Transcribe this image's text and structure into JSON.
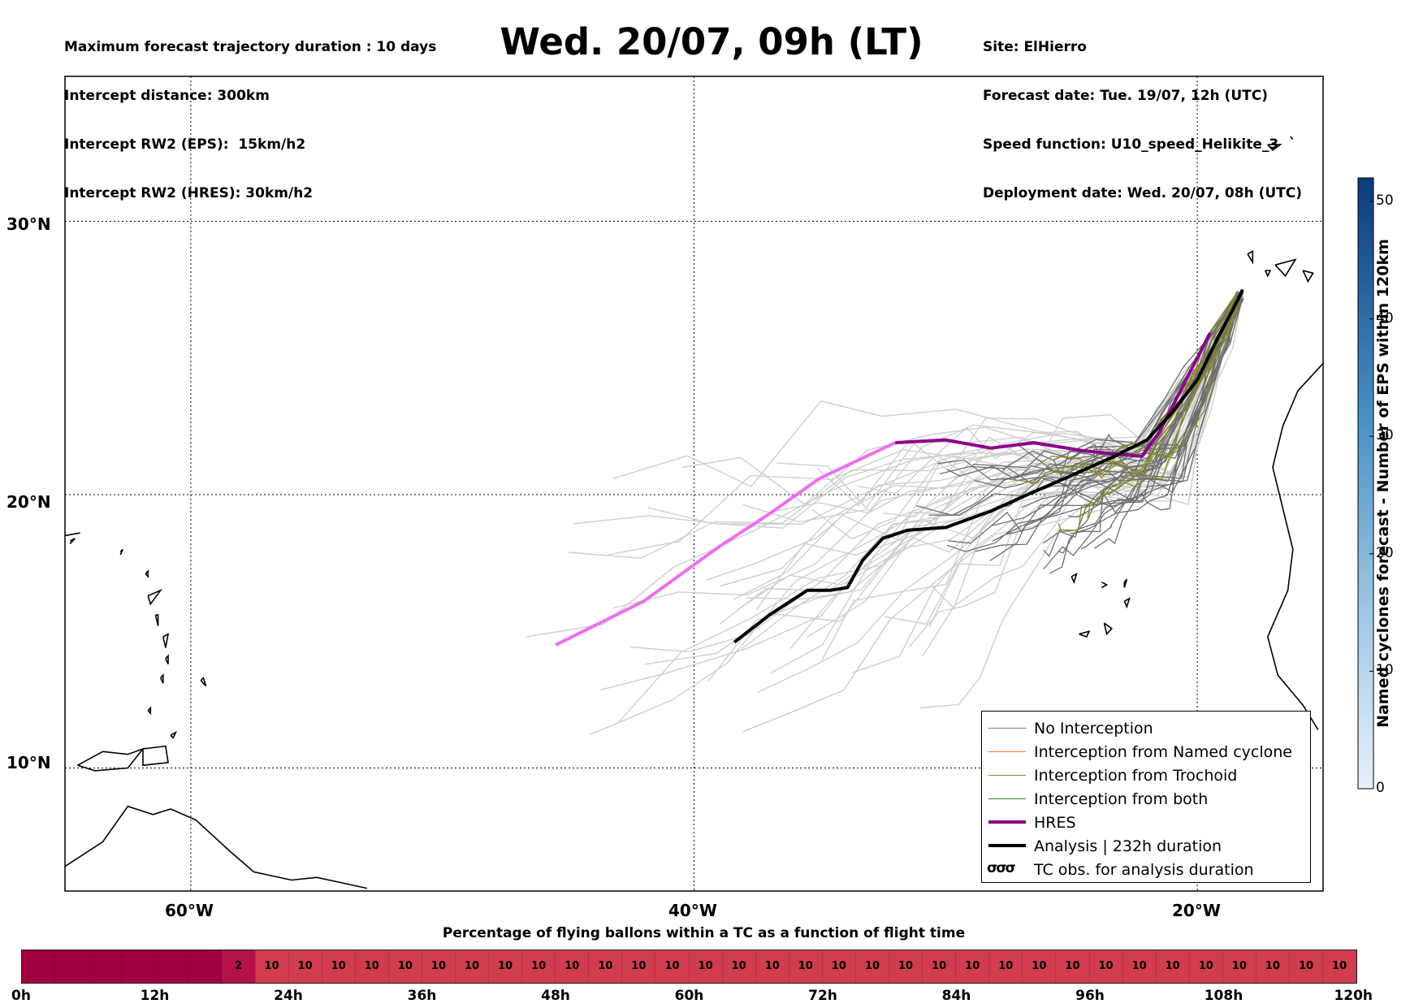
{
  "header_left": [
    "Maximum forecast trajectory duration : 10 days",
    "Intercept distance: 300km",
    "Intercept RW2 (EPS):  15km/h2",
    "Intercept RW2 (HRES): 30km/h2"
  ],
  "title": "Wed. 20/07, 09h (LT)",
  "header_right": [
    "Site: ElHierro",
    "Forecast date: Tue. 19/07, 12h (UTC)",
    "Speed function: U10_speed_Helikite_3",
    "Deployment date: Wed. 20/07, 08h (UTC)"
  ],
  "map": {
    "lat_labels": [
      "30°N",
      "20°N",
      "10°N"
    ],
    "lon_labels": [
      "60°W",
      "40°W",
      "20°W"
    ],
    "lat_range": [
      5.5,
      35.3
    ],
    "lon_range": [
      -65,
      -15
    ]
  },
  "legend": [
    {
      "label": "No Interception",
      "color": "#808080",
      "width": 1.2
    },
    {
      "label": "Interception from Named cyclone",
      "color": "#ff6a30",
      "width": 1.2
    },
    {
      "label": "Interception from Trochoid",
      "color": "#8c8c1e",
      "width": 1.2
    },
    {
      "label": "Interception from both",
      "color": "#2a8a2a",
      "width": 1.2
    },
    {
      "label": "HRES",
      "color": "#8b008b",
      "width": 4
    },
    {
      "label": "Analysis | 232h duration",
      "color": "#000000",
      "width": 4
    },
    {
      "label": "TC obs. for analysis duration",
      "glyph": "σσσ"
    }
  ],
  "colorbar": {
    "title": "Named cyclones forecast - Number of EPS within 120km",
    "ticks": [
      "0",
      "10",
      "20",
      "30",
      "40",
      "50"
    ],
    "min": 0,
    "max": 52,
    "color_low": "#e6eff8",
    "color_high": "#0a3b7a"
  },
  "timeline": {
    "title": "Percentage of flying ballons within a TC as a function of flight time",
    "tick_labels": [
      "0h",
      "12h",
      "24h",
      "36h",
      "48h",
      "60h",
      "72h",
      "84h",
      "96h",
      "108h",
      "120h"
    ],
    "cells": [
      "",
      "",
      "",
      "",
      "",
      "",
      "2",
      "10",
      "10",
      "10",
      "10",
      "10",
      "10",
      "10",
      "10",
      "10",
      "10",
      "10",
      "10",
      "10",
      "10",
      "10",
      "10",
      "10",
      "10",
      "10",
      "10",
      "10",
      "10",
      "10",
      "10",
      "10",
      "10",
      "10",
      "10",
      "10",
      "10",
      "10",
      "10",
      "10"
    ],
    "color_zero": "#9e0040",
    "color_ten": "#d13c4f"
  },
  "tracks": {
    "analysis": [
      [
        -38.4,
        14.6
      ],
      [
        -37,
        15.6
      ],
      [
        -35.5,
        16.5
      ],
      [
        -34.6,
        16.5
      ],
      [
        -33.9,
        16.6
      ],
      [
        -33.3,
        17.6
      ],
      [
        -32.5,
        18.4
      ],
      [
        -31.5,
        18.7
      ],
      [
        -30,
        18.8
      ],
      [
        -28.2,
        19.4
      ],
      [
        -26.5,
        20.1
      ],
      [
        -25,
        20.7
      ],
      [
        -23.3,
        21.4
      ],
      [
        -22,
        22
      ],
      [
        -21,
        23
      ],
      [
        -20,
        24.2
      ],
      [
        -19.2,
        25.7
      ],
      [
        -18.4,
        27.1
      ],
      [
        -18.2,
        27.5
      ]
    ],
    "hres": [
      [
        -19.5,
        25.9
      ],
      [
        -20.5,
        24.1
      ],
      [
        -21.5,
        22.3
      ],
      [
        -22.2,
        21.4
      ],
      [
        -24.5,
        21.6
      ],
      [
        -26.5,
        21.9
      ],
      [
        -28.2,
        21.7
      ],
      [
        -30,
        22
      ],
      [
        -32,
        21.9
      ],
      [
        -35,
        20.6
      ],
      [
        -37,
        19.3
      ],
      [
        -39,
        18.1
      ],
      [
        -42,
        16.1
      ],
      [
        -45.5,
        14.5
      ]
    ]
  }
}
